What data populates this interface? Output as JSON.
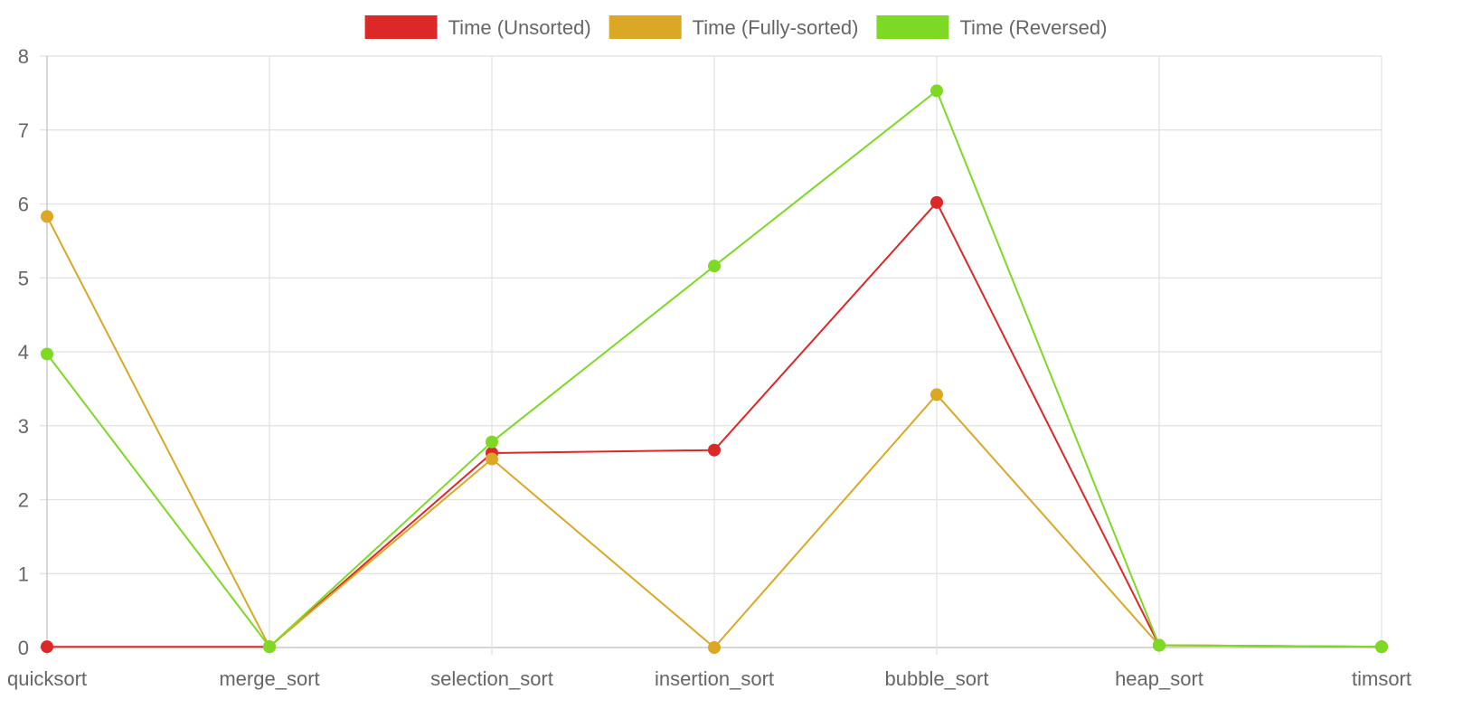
{
  "chart_data": {
    "type": "line",
    "title": "",
    "xlabel": "",
    "ylabel": "",
    "categories": [
      "quicksort",
      "merge_sort",
      "selection_sort",
      "insertion_sort",
      "bubble_sort",
      "heap_sort",
      "timsort"
    ],
    "ylim": [
      0,
      8
    ],
    "yticks": [
      0,
      1,
      2,
      3,
      4,
      5,
      6,
      7,
      8
    ],
    "grid": true,
    "legend_position": "top-center",
    "series": [
      {
        "name": "Time (Unsorted)",
        "color": "#dc2828",
        "values": [
          0.01,
          0.01,
          2.63,
          2.67,
          6.02,
          0.03,
          0.01
        ]
      },
      {
        "name": "Time (Fully-sorted)",
        "color": "#daa825",
        "values": [
          5.83,
          0.01,
          2.55,
          0.0,
          3.42,
          0.03,
          0.01
        ]
      },
      {
        "name": "Time (Reversed)",
        "color": "#7ed925",
        "values": [
          3.97,
          0.01,
          2.78,
          5.16,
          7.53,
          0.03,
          0.01
        ]
      }
    ]
  }
}
